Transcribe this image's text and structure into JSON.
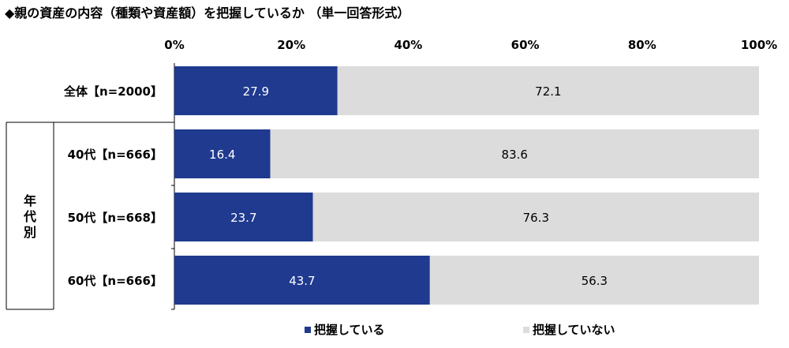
{
  "chart_data": {
    "type": "bar",
    "orientation": "horizontal",
    "stacked": true,
    "title": "◆親の資産の内容（種類や資産額）を把握しているか （単一回答形式）",
    "xlim": [
      0,
      100
    ],
    "x_ticks": [
      "0%",
      "20%",
      "40%",
      "60%",
      "80%",
      "100%"
    ],
    "group_label": "年代別",
    "categories": [
      "全体【n=2000】",
      "40代【n=666】",
      "50代【n=668】",
      "60代【n=666】"
    ],
    "series": [
      {
        "name": "把握している",
        "values": [
          27.9,
          16.4,
          23.7,
          43.7
        ],
        "color": "#1f3a8f"
      },
      {
        "name": "把握していない",
        "values": [
          72.1,
          83.6,
          76.3,
          56.3
        ],
        "color": "#dcdcdc"
      }
    ],
    "legend_position": "bottom",
    "grid": false
  }
}
